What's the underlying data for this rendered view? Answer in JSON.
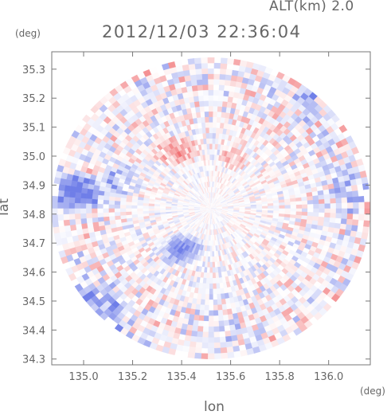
{
  "header": {
    "altitude_label": "ALT(km)  2.0",
    "timestamp": "2012/12/03 22:36:04"
  },
  "chart_data": {
    "type": "heatmap",
    "title": "2012/12/03 22:36:04",
    "xlabel": "lon",
    "ylabel": "lat",
    "x_unit": "(deg)",
    "y_unit": "(deg)",
    "xlim": [
      134.87,
      136.17
    ],
    "ylim": [
      34.28,
      35.36
    ],
    "x_ticks": [
      135.0,
      135.2,
      135.4,
      135.6,
      135.8,
      136.0
    ],
    "x_tick_labels": [
      "135.0",
      "135.2",
      "135.4",
      "135.6",
      "135.8",
      "136.0"
    ],
    "y_ticks": [
      34.3,
      34.4,
      34.5,
      34.6,
      34.7,
      34.8,
      34.9,
      35.0,
      35.1,
      35.2,
      35.3
    ],
    "y_tick_labels": [
      "34.3",
      "34.4",
      "34.5",
      "34.6",
      "34.7",
      "34.8",
      "34.9",
      "35.0",
      "35.1",
      "35.2",
      "35.3"
    ],
    "grid": false,
    "legend": "none",
    "radar_center": [
      135.52,
      34.82
    ],
    "radar_range_lon": 0.65,
    "radar_range_lat": 0.52,
    "colormap": {
      "negative": "#6f7ee8",
      "neutral": "#ffffff",
      "positive": "#ef5f62"
    },
    "regions": [
      {
        "lon": 134.97,
        "lat": 34.87,
        "r_lon": 0.12,
        "r_lat": 0.08,
        "value": -0.55
      },
      {
        "lon": 135.15,
        "lat": 34.92,
        "r_lon": 0.1,
        "r_lat": 0.07,
        "value": -0.25
      },
      {
        "lon": 135.4,
        "lat": 34.68,
        "r_lon": 0.1,
        "r_lat": 0.06,
        "value": -0.45
      },
      {
        "lon": 135.05,
        "lat": 34.47,
        "r_lon": 0.16,
        "r_lat": 0.12,
        "value": -0.35
      },
      {
        "lon": 135.38,
        "lat": 35.02,
        "r_lon": 0.1,
        "r_lat": 0.06,
        "value": 0.3
      },
      {
        "lon": 135.62,
        "lat": 35.0,
        "r_lon": 0.07,
        "r_lat": 0.05,
        "value": 0.2
      },
      {
        "lon": 135.62,
        "lat": 34.45,
        "r_lon": 0.2,
        "r_lat": 0.14,
        "value": -0.05
      },
      {
        "lon": 136.08,
        "lat": 34.88,
        "r_lon": 0.08,
        "r_lat": 0.1,
        "value": -0.2
      },
      {
        "lon": 135.95,
        "lat": 35.18,
        "r_lon": 0.1,
        "r_lat": 0.07,
        "value": -0.25
      }
    ]
  }
}
